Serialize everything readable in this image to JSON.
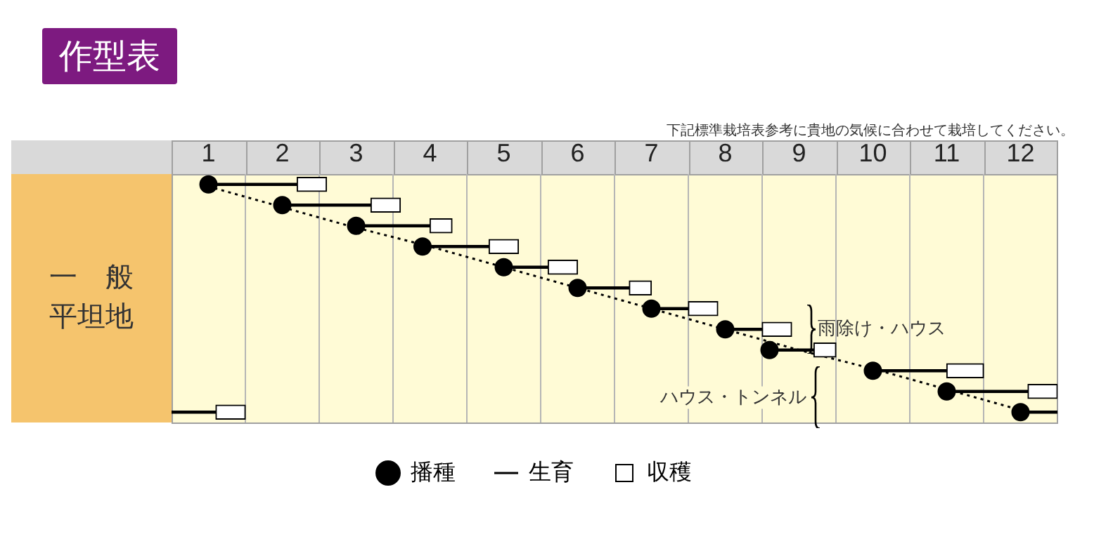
{
  "chart_data": {
    "type": "bar",
    "orientation": "horizontal",
    "title": "作型表",
    "ylabel": "一　般平坦地",
    "annotations": [
      "下記標準栽培表参考に貴地の気候に合わせて栽培してください。",
      "雨除け・ハウス",
      "ハウス・トンネル"
    ],
    "categories": [
      null,
      null,
      null,
      null,
      null,
      null,
      null,
      null,
      null,
      null,
      null,
      null
    ],
    "xlim": [
      0,
      12
    ],
    "xticks": [
      {
        "value": 0.5,
        "label": "1"
      },
      {
        "value": 1,
        "label": null
      },
      {
        "value": 1.5,
        "label": "2"
      },
      {
        "value": 2,
        "label": null
      },
      {
        "value": 2.5,
        "label": "3"
      },
      {
        "value": 3,
        "label": null
      },
      {
        "value": 3.5,
        "label": "4"
      },
      {
        "value": 4,
        "label": null
      },
      {
        "value": 4.5,
        "label": "5"
      },
      {
        "value": 5,
        "label": null
      },
      {
        "value": 5.5,
        "label": "6"
      },
      {
        "value": 6,
        "label": null
      },
      {
        "value": 6.5,
        "label": "7"
      },
      {
        "value": 7,
        "label": null
      },
      {
        "value": 7.5,
        "label": "8"
      },
      {
        "value": 8,
        "label": null
      },
      {
        "value": 8.5,
        "label": "9"
      },
      {
        "value": 9,
        "label": null
      },
      {
        "value": 9.5,
        "label": "10"
      },
      {
        "value": 10,
        "label": null
      },
      {
        "value": 10.5,
        "label": "11"
      },
      {
        "value": 11,
        "label": null
      },
      {
        "value": 11.5,
        "label": "12"
      }
    ],
    "grid": "x",
    "legend": "bottom",
    "series": [
      {
        "name": "播種",
        "type": "scatter",
        "color": "#000000",
        "values": [
          0.5,
          1.5,
          2.5,
          3.4,
          4.5,
          5.5,
          6.5,
          7.5,
          8.1,
          9.5,
          10.5,
          11.5
        ]
      },
      {
        "name": "生育",
        "color": "#000000",
        "base": [
          0.5,
          1.5,
          2.5,
          3.4,
          4.5,
          5.5,
          6.5,
          7.5,
          8.1,
          9.5,
          10.5,
          11.5
        ],
        "values": [
          1.2,
          1.2,
          1.0,
          0.9,
          0.6,
          0.7,
          0.5,
          0.5,
          0.6,
          1.0,
          1.1,
          0.5
        ]
      },
      {
        "name": "収穫",
        "color": "#ffffff",
        "base": [
          1.7,
          2.7,
          3.5,
          4.3,
          5.1,
          6.2,
          7.0,
          8.0,
          8.7,
          10.5,
          11.6,
          null
        ],
        "values": [
          0.4,
          0.4,
          0.3,
          0.4,
          0.4,
          0.3,
          0.4,
          0.4,
          0.3,
          0.5,
          0.4,
          null
        ]
      },
      {
        "color": "#000000",
        "base": [
          null,
          null,
          null,
          null,
          null,
          null,
          null,
          null,
          null,
          null,
          null,
          0
        ],
        "values": [
          null,
          null,
          null,
          null,
          null,
          null,
          null,
          null,
          null,
          null,
          null,
          0.6
        ]
      },
      {
        "color": "#ffffff",
        "base": [
          null,
          null,
          null,
          null,
          null,
          null,
          null,
          null,
          null,
          null,
          null,
          0.6
        ],
        "values": [
          null,
          null,
          null,
          null,
          null,
          null,
          null,
          null,
          null,
          null,
          null,
          0.4
        ]
      },
      {
        "type": "line",
        "color": "#000000",
        "line_style": "dotted",
        "marker": "none",
        "values": [
          0.4,
          1.4,
          2.4,
          3.5,
          4.5,
          5.5,
          6.5,
          7.5,
          8.5,
          9.6,
          10.6,
          11.6
        ]
      }
    ]
  }
}
